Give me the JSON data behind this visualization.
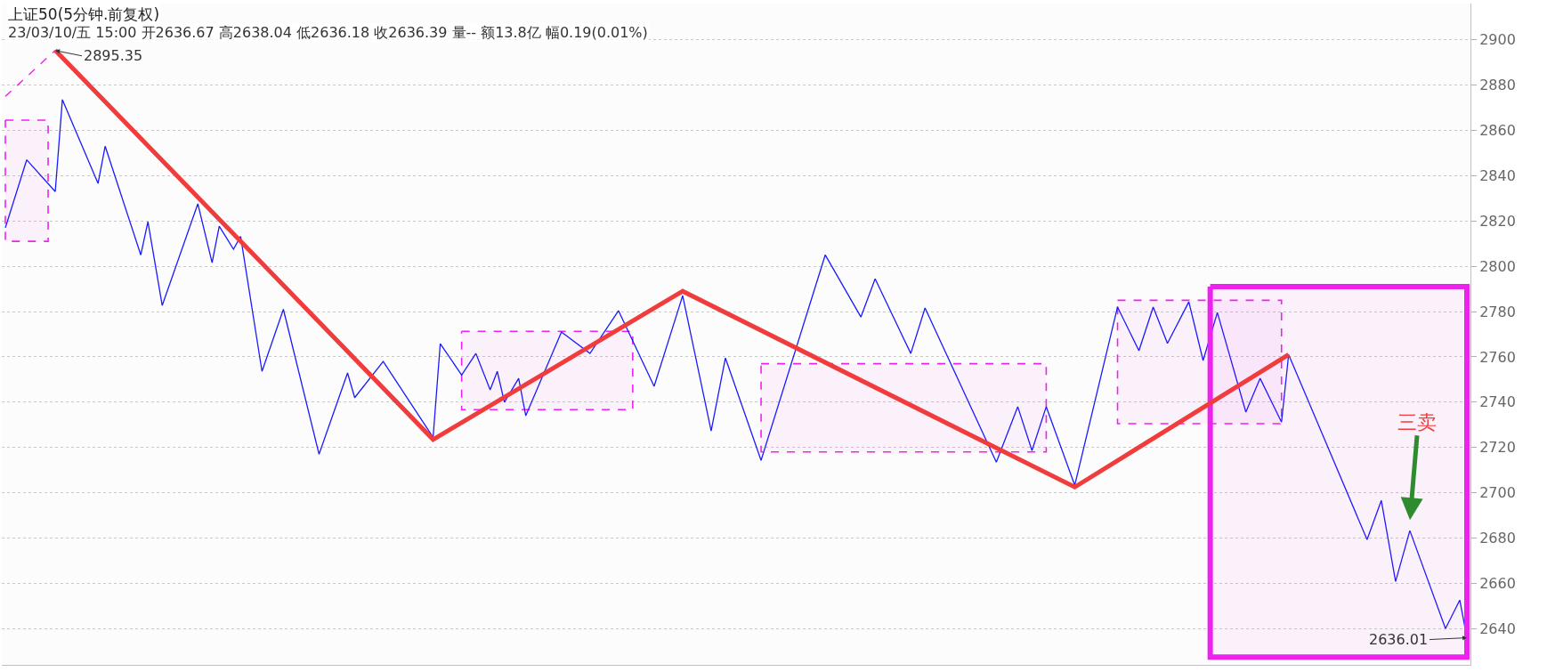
{
  "chart_data": {
    "type": "line",
    "title": "上证50(5分钟.前复权)",
    "subtitle": "23/03/10/五 15:00 开2636.67 高2638.04 低2636.18 收2636.39 量-- 额13.8亿 幅0.19(0.01%)",
    "categories": [
      null,
      null,
      null,
      null,
      null,
      null,
      null,
      null,
      null,
      null,
      null,
      null,
      null,
      null,
      null,
      null,
      null,
      null,
      null,
      null,
      null,
      null,
      null,
      null,
      null,
      null,
      null,
      null,
      null,
      null,
      null,
      null,
      null,
      null,
      null,
      null,
      null,
      null,
      null,
      null,
      null,
      null,
      null,
      null,
      null,
      null,
      null,
      null,
      null,
      null,
      null,
      null,
      null,
      null,
      null,
      null,
      null,
      null,
      null,
      null,
      null,
      null,
      null,
      null,
      null,
      null,
      null,
      null,
      null,
      null,
      null,
      null,
      null,
      null,
      null,
      null,
      null,
      null,
      null,
      null,
      null,
      null,
      null,
      null,
      null,
      null,
      null,
      null,
      null,
      null,
      null,
      null,
      null,
      null,
      null,
      null,
      null,
      null,
      null,
      null,
      null,
      null,
      null,
      null,
      null,
      null,
      null,
      null,
      null,
      null,
      null,
      null,
      null,
      null,
      null,
      null,
      null,
      null,
      null,
      null,
      null,
      null,
      null,
      null,
      null,
      null,
      null,
      null,
      null,
      null,
      null,
      null,
      null,
      null,
      null,
      null,
      null,
      null,
      null,
      null,
      null,
      null,
      null,
      null,
      null,
      null,
      null,
      null,
      null,
      null,
      null,
      null,
      null,
      null,
      null,
      null,
      null,
      null,
      null,
      null,
      null,
      null,
      null,
      null,
      null,
      null,
      null,
      null,
      null,
      null,
      null,
      null,
      null,
      null,
      null,
      null,
      null,
      null,
      null,
      null,
      null,
      null,
      null,
      null,
      null,
      null,
      null,
      null,
      null,
      null,
      null,
      null,
      null,
      null,
      null,
      null,
      null,
      null,
      null,
      null,
      null,
      null,
      null,
      null,
      null,
      null
    ],
    "ylim": [
      2624,
      2916
    ],
    "yticks": [
      2640,
      2660,
      2680,
      2700,
      2720,
      2740,
      2760,
      2780,
      2800,
      2820,
      2840,
      2860,
      2880,
      2900
    ],
    "grid": "y",
    "tick_labels": "y",
    "marker": "none",
    "series": [
      {
        "color": "#1a1aff",
        "line_style": "solid",
        "values": [
          2817,
          null,
          null,
          2847,
          null,
          null,
          null,
          2833,
          2873.6,
          null,
          null,
          null,
          null,
          2836.6,
          2853,
          null,
          null,
          null,
          null,
          2805,
          2819.7,
          null,
          2782.7,
          null,
          null,
          null,
          null,
          2827.6,
          null,
          2801.6,
          2817.7,
          null,
          2807.5,
          2813.2,
          null,
          null,
          2753.6,
          null,
          null,
          2781,
          null,
          null,
          null,
          null,
          2717,
          null,
          null,
          null,
          2752.9,
          2742,
          null,
          null,
          null,
          2758,
          null,
          null,
          null,
          null,
          null,
          null,
          2724.5,
          2765.8,
          null,
          null,
          2752,
          null,
          2761.5,
          null,
          2745.4,
          2753.6,
          2740,
          null,
          2750.5,
          2734,
          null,
          null,
          null,
          null,
          2771,
          null,
          null,
          null,
          2761.5,
          null,
          null,
          null,
          2780.4,
          null,
          null,
          null,
          null,
          2747,
          null,
          null,
          null,
          2787,
          null,
          null,
          null,
          2727.3,
          null,
          2759.5,
          null,
          null,
          null,
          null,
          2714.3,
          null,
          null,
          null,
          null,
          null,
          null,
          null,
          null,
          2805,
          null,
          null,
          null,
          null,
          2777.6,
          null,
          2794.5,
          null,
          null,
          null,
          null,
          2761.5,
          null,
          2781.6,
          null,
          null,
          null,
          null,
          null,
          null,
          null,
          null,
          null,
          2713.5,
          null,
          null,
          2738,
          null,
          2718.6,
          null,
          2738,
          null,
          null,
          null,
          2703.3,
          null,
          null,
          null,
          null,
          null,
          2782,
          null,
          null,
          2762.7,
          null,
          2782,
          null,
          2766,
          null,
          null,
          2784.3,
          null,
          2758.4,
          null,
          2779.6,
          null,
          null,
          null,
          2735.6,
          null,
          2750.5,
          null,
          null,
          2731.2,
          2761,
          null,
          null,
          null,
          null,
          null,
          null,
          null,
          null,
          null,
          null,
          2679.3,
          null,
          2696.6,
          null,
          2660.8,
          null,
          2683.3,
          null,
          null,
          null,
          null,
          2640,
          null,
          2652.6,
          2636.01
        ],
        "upper": [
          2864.5,
          2864.5,
          2864.5,
          2864.5,
          2864.5,
          2864.5,
          2864.5,
          null,
          null,
          null,
          null,
          null,
          null,
          null,
          null,
          null,
          null,
          null,
          null,
          null,
          null,
          null,
          null,
          null,
          null,
          null,
          null,
          null,
          null,
          null,
          null,
          null,
          null,
          null,
          null,
          null,
          null,
          null,
          null,
          null,
          null,
          null,
          null,
          null,
          null,
          null,
          null,
          null,
          null,
          null,
          null,
          null,
          null,
          null,
          null,
          null,
          null,
          null,
          null,
          null,
          null,
          null,
          null,
          null,
          2771.3,
          2771.3,
          2771.3,
          2771.3,
          2771.3,
          2771.3,
          2771.3,
          2771.3,
          2771.3,
          2771.3,
          2771.3,
          2771.3,
          2771.3,
          2771.3,
          2771.3,
          2771.3,
          2771.3,
          2771.3,
          2771.3,
          2771.3,
          2771.3,
          2771.3,
          2771.3,
          2771.3,
          2771.3,
          null,
          null,
          null,
          null,
          null,
          null,
          null,
          null,
          null,
          null,
          null,
          null,
          null,
          null,
          null,
          null,
          null,
          2757,
          2757,
          2757,
          2757,
          2757,
          2757,
          2757,
          2757,
          2757,
          2757,
          2757,
          2757,
          2757,
          2757,
          2757,
          2757,
          2757,
          2757,
          2757,
          2757,
          2757,
          2757,
          2757,
          2757,
          2757,
          2757,
          2757,
          2757,
          2757,
          2757,
          2757,
          2757,
          2757,
          2757,
          2757,
          2757,
          2757,
          2757,
          2757,
          2757,
          2757,
          null,
          null,
          null,
          null,
          null,
          null,
          null,
          null,
          null,
          2785,
          2785,
          2785,
          2785,
          2785,
          2785,
          2785,
          2785,
          2785,
          2785,
          2785,
          2785,
          2785,
          2785,
          2785,
          2785,
          2785,
          2785,
          2785,
          2785,
          2785,
          2785,
          2785,
          2785,
          null,
          null,
          null,
          null,
          null,
          null,
          null,
          null,
          null,
          null,
          null,
          null,
          null,
          null,
          null,
          null,
          null,
          null,
          null,
          null,
          null,
          null,
          null,
          null,
          null,
          null
        ],
        "lower": [
          2811,
          2811,
          2811,
          2811,
          2811,
          2811,
          2811,
          null,
          null,
          null,
          null,
          null,
          null,
          null,
          null,
          null,
          null,
          null,
          null,
          null,
          null,
          null,
          null,
          null,
          null,
          null,
          null,
          null,
          null,
          null,
          null,
          null,
          null,
          null,
          null,
          null,
          null,
          null,
          null,
          null,
          null,
          null,
          null,
          null,
          null,
          null,
          null,
          null,
          null,
          null,
          null,
          null,
          null,
          null,
          null,
          null,
          null,
          null,
          null,
          null,
          null,
          null,
          null,
          null,
          2736.7,
          2736.7,
          2736.7,
          2736.7,
          2736.7,
          2736.7,
          2736.7,
          2736.7,
          2736.7,
          2736.7,
          2736.7,
          2736.7,
          2736.7,
          2736.7,
          2736.7,
          2736.7,
          2736.7,
          2736.7,
          2736.7,
          2736.7,
          2736.7,
          2736.7,
          2736.7,
          2736.7,
          2736.7,
          null,
          null,
          null,
          null,
          null,
          null,
          null,
          null,
          null,
          null,
          null,
          null,
          null,
          null,
          null,
          null,
          null,
          2718,
          2718,
          2718,
          2718,
          2718,
          2718,
          2718,
          2718,
          2718,
          2718,
          2718,
          2718,
          2718,
          2718,
          2718,
          2718,
          2718,
          2718,
          2718,
          2718,
          2718,
          2718,
          2718,
          2718,
          2718,
          2718,
          2718,
          2718,
          2718,
          2718,
          2718,
          2718,
          2718,
          2718,
          2718,
          2718,
          2718,
          2718,
          2718,
          2718,
          2718,
          null,
          null,
          null,
          null,
          null,
          null,
          null,
          null,
          null,
          2730.5,
          2730.5,
          2730.5,
          2730.5,
          2730.5,
          2730.5,
          2730.5,
          2730.5,
          2730.5,
          2730.5,
          2730.5,
          2730.5,
          2730.5,
          2730.5,
          2730.5,
          2730.5,
          2730.5,
          2730.5,
          2730.5,
          2730.5,
          2730.5,
          2730.5,
          2730.5,
          2730.5,
          null,
          null,
          null,
          null,
          null,
          null,
          null,
          null,
          null,
          null,
          null,
          null,
          null,
          null,
          null,
          null,
          null,
          null,
          null,
          null,
          null,
          null,
          null,
          null,
          null,
          null
        ]
      },
      {
        "color": "#f03c3c",
        "line_style": "solid",
        "values": [
          null,
          null,
          null,
          null,
          null,
          null,
          null,
          2895.35,
          null,
          null,
          null,
          null,
          null,
          null,
          null,
          null,
          null,
          null,
          null,
          null,
          null,
          null,
          null,
          null,
          null,
          null,
          null,
          null,
          null,
          null,
          null,
          null,
          null,
          null,
          null,
          null,
          null,
          null,
          null,
          null,
          null,
          null,
          null,
          null,
          null,
          null,
          null,
          null,
          null,
          null,
          null,
          null,
          null,
          null,
          null,
          null,
          null,
          null,
          null,
          null,
          2723.5,
          null,
          null,
          null,
          null,
          null,
          null,
          null,
          null,
          null,
          null,
          null,
          null,
          null,
          null,
          null,
          null,
          null,
          null,
          null,
          null,
          null,
          null,
          null,
          null,
          null,
          null,
          null,
          null,
          null,
          null,
          null,
          null,
          null,
          null,
          2789,
          null,
          null,
          null,
          null,
          null,
          null,
          null,
          null,
          null,
          null,
          null,
          null,
          null,
          null,
          null,
          null,
          null,
          null,
          null,
          null,
          null,
          null,
          null,
          null,
          null,
          null,
          null,
          null,
          null,
          null,
          null,
          null,
          null,
          null,
          null,
          null,
          null,
          null,
          null,
          null,
          null,
          null,
          null,
          null,
          null,
          null,
          null,
          null,
          null,
          null,
          null,
          null,
          null,
          null,
          2702.5,
          null,
          null,
          null,
          null,
          null,
          null,
          null,
          null,
          null,
          null,
          null,
          null,
          null,
          null,
          null,
          null,
          null,
          null,
          null,
          null,
          null,
          null,
          null,
          null,
          null,
          null,
          null,
          null,
          null,
          2761,
          null,
          null,
          null,
          null,
          null,
          null,
          null,
          null,
          null,
          null,
          null,
          null,
          null,
          null,
          null,
          null,
          null,
          null,
          null,
          null,
          null,
          null,
          null,
          null,
          null
        ],
        "upper": [
          null,
          null,
          null,
          null,
          null,
          null,
          null,
          null,
          null,
          null,
          null,
          null,
          null,
          null,
          null,
          null,
          null,
          null,
          null,
          null,
          null,
          null,
          null,
          null,
          null,
          null,
          null,
          null,
          null,
          null,
          null,
          null,
          null,
          null,
          null,
          null,
          null,
          null,
          null,
          null,
          null,
          null,
          null,
          null,
          null,
          null,
          null,
          null,
          null,
          null,
          null,
          null,
          null,
          null,
          null,
          null,
          null,
          null,
          null,
          null,
          null,
          null,
          null,
          null,
          null,
          null,
          null,
          null,
          null,
          null,
          null,
          null,
          null,
          null,
          null,
          null,
          null,
          null,
          null,
          null,
          null,
          null,
          null,
          null,
          null,
          null,
          null,
          null,
          null,
          null,
          null,
          null,
          null,
          null,
          null,
          null,
          null,
          null,
          null,
          null,
          null,
          null,
          null,
          null,
          null,
          null,
          null,
          null,
          null,
          null,
          null,
          null,
          null,
          null,
          null,
          null,
          null,
          null,
          null,
          null,
          null,
          null,
          null,
          null,
          null,
          null,
          null,
          null,
          null,
          null,
          null,
          null,
          null,
          null,
          null,
          null,
          null,
          null,
          null,
          null,
          null,
          null,
          null,
          null,
          null,
          null,
          null,
          null,
          null,
          null,
          null,
          null,
          null,
          null,
          null,
          null,
          null,
          null,
          null,
          null,
          null,
          null,
          null,
          null,
          null,
          null,
          null,
          null,
          null,
          2791,
          2791,
          2791,
          2791,
          2791,
          2791,
          2791,
          2791,
          2791,
          2791,
          2791,
          2791,
          2791,
          2791,
          2791,
          2791,
          2791,
          2791,
          2791,
          2791,
          2791,
          2791,
          2791,
          2791,
          2791,
          2791,
          2791,
          2791,
          2791,
          2791,
          2791,
          2791,
          2791,
          2791,
          2791,
          2791,
          2791
        ],
        "lower": [
          null,
          null,
          null,
          null,
          null,
          null,
          null,
          null,
          null,
          null,
          null,
          null,
          null,
          null,
          null,
          null,
          null,
          null,
          null,
          null,
          null,
          null,
          null,
          null,
          null,
          null,
          null,
          null,
          null,
          null,
          null,
          null,
          null,
          null,
          null,
          null,
          null,
          null,
          null,
          null,
          null,
          null,
          null,
          null,
          null,
          null,
          null,
          null,
          null,
          null,
          null,
          null,
          null,
          null,
          null,
          null,
          null,
          null,
          null,
          null,
          null,
          null,
          null,
          null,
          null,
          null,
          null,
          null,
          null,
          null,
          null,
          null,
          null,
          null,
          null,
          null,
          null,
          null,
          null,
          null,
          null,
          null,
          null,
          null,
          null,
          null,
          null,
          null,
          null,
          null,
          null,
          null,
          null,
          null,
          null,
          null,
          null,
          null,
          null,
          null,
          null,
          null,
          null,
          null,
          null,
          null,
          null,
          null,
          null,
          null,
          null,
          null,
          null,
          null,
          null,
          null,
          null,
          null,
          null,
          null,
          null,
          null,
          null,
          null,
          null,
          null,
          null,
          null,
          null,
          null,
          null,
          null,
          null,
          null,
          null,
          null,
          null,
          null,
          null,
          null,
          null,
          null,
          null,
          null,
          null,
          null,
          null,
          null,
          null,
          null,
          null,
          null,
          null,
          null,
          null,
          null,
          null,
          null,
          null,
          null,
          null,
          null,
          null,
          null,
          null,
          null,
          null,
          null,
          null,
          2627.4,
          2627.4,
          2627.4,
          2627.4,
          2627.4,
          2627.4,
          2627.4,
          2627.4,
          2627.4,
          2627.4,
          2627.4,
          2627.4,
          2627.4,
          2627.4,
          2627.4,
          2627.4,
          2627.4,
          2627.4,
          2627.4,
          2627.4,
          2627.4,
          2627.4,
          2627.4,
          2627.4,
          2627.4,
          2627.4,
          2627.4,
          2627.4,
          2627.4,
          2627.4,
          2627.4,
          2627.4,
          2627.4,
          2627.4,
          2627.4,
          2627.4,
          2627.4
        ]
      },
      {
        "color": "#ee22ee",
        "line_style": "dashed",
        "values": [
          2875,
          null,
          null,
          null,
          null,
          null,
          null,
          2895.35,
          null,
          null,
          null,
          null,
          null,
          null,
          null,
          null,
          null,
          null,
          null,
          null,
          null,
          null,
          null,
          null,
          null,
          null,
          null,
          null,
          null,
          null,
          null,
          null,
          null,
          null,
          null,
          null,
          null,
          null,
          null,
          null,
          null,
          null,
          null,
          null,
          null,
          null,
          null,
          null,
          null,
          null,
          null,
          null,
          null,
          null,
          null,
          null,
          null,
          null,
          null,
          null,
          null,
          null,
          null,
          null,
          null,
          null,
          null,
          null,
          null,
          null,
          null,
          null,
          null,
          null,
          null,
          null,
          null,
          null,
          null,
          null,
          null,
          null,
          null,
          null,
          null,
          null,
          null,
          null,
          null,
          null,
          null,
          null,
          null,
          null,
          null,
          null,
          null,
          null,
          null,
          null,
          null,
          null,
          null,
          null,
          null,
          null,
          null,
          null,
          null,
          null,
          null,
          null,
          null,
          null,
          null,
          null,
          null,
          null,
          null,
          null,
          null,
          null,
          null,
          null,
          null,
          null,
          null,
          null,
          null,
          null,
          null,
          null,
          null,
          null,
          null,
          null,
          null,
          null,
          null,
          null,
          null,
          null,
          null,
          null,
          null,
          null,
          null,
          null,
          null,
          null,
          null,
          null,
          null,
          null,
          null,
          null,
          null,
          null,
          null,
          null,
          null,
          null,
          null,
          null,
          null,
          null,
          null,
          null,
          null,
          null,
          null,
          null,
          null,
          null,
          null,
          null,
          null,
          null,
          null,
          null,
          null,
          null,
          null,
          null,
          null,
          null,
          null,
          null,
          null,
          null,
          null,
          null,
          null,
          null,
          null,
          null,
          null,
          null,
          null,
          null,
          null,
          null,
          null,
          null,
          null,
          null
        ]
      }
    ],
    "annotations": [
      "2895.35",
      "2636.01",
      "三卖"
    ]
  }
}
